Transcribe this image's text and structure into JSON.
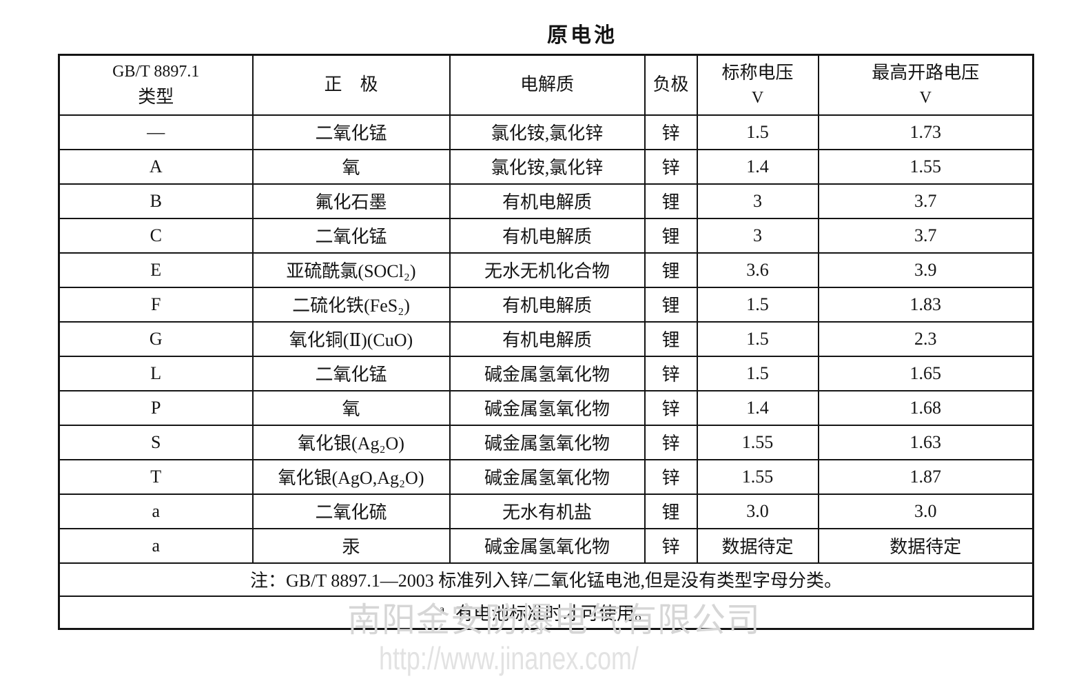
{
  "title": "原电池",
  "table": {
    "header": {
      "col1_line1": "GB/T 8897.1",
      "col1_line2": "类型",
      "col2": "正　极",
      "col3": "电解质",
      "col4": "负极",
      "col5_line1": "标称电压",
      "col5_line2": "V",
      "col6_line1": "最高开路电压",
      "col6_line2": "V"
    },
    "rows": [
      {
        "type": "—",
        "positive": "二氧化锰",
        "electrolyte": "氯化铵,氯化锌",
        "negative": "锌",
        "nominal": "1.5",
        "max": "1.73"
      },
      {
        "type": "A",
        "positive": "氧",
        "electrolyte": "氯化铵,氯化锌",
        "negative": "锌",
        "nominal": "1.4",
        "max": "1.55"
      },
      {
        "type": "B",
        "positive": "氟化石墨",
        "electrolyte": "有机电解质",
        "negative": "锂",
        "nominal": "3",
        "max": "3.7"
      },
      {
        "type": "C",
        "positive": "二氧化锰",
        "electrolyte": "有机电解质",
        "negative": "锂",
        "nominal": "3",
        "max": "3.7"
      },
      {
        "type": "E",
        "positive": "亚硫酰氯(SOCl₂)",
        "electrolyte": "无水无机化合物",
        "negative": "锂",
        "nominal": "3.6",
        "max": "3.9"
      },
      {
        "type": "F",
        "positive": "二硫化铁(FeS₂)",
        "electrolyte": "有机电解质",
        "negative": "锂",
        "nominal": "1.5",
        "max": "1.83"
      },
      {
        "type": "G",
        "positive": "氧化铜(Ⅱ)(CuO)",
        "electrolyte": "有机电解质",
        "negative": "锂",
        "nominal": "1.5",
        "max": "2.3"
      },
      {
        "type": "L",
        "positive": "二氧化锰",
        "electrolyte": "碱金属氢氧化物",
        "negative": "锌",
        "nominal": "1.5",
        "max": "1.65"
      },
      {
        "type": "P",
        "positive": "氧",
        "electrolyte": "碱金属氢氧化物",
        "negative": "锌",
        "nominal": "1.4",
        "max": "1.68"
      },
      {
        "type": "S",
        "positive": "氧化银(Ag₂O)",
        "electrolyte": "碱金属氢氧化物",
        "negative": "锌",
        "nominal": "1.55",
        "max": "1.63"
      },
      {
        "type": "T",
        "positive": "氧化银(AgO,Ag₂O)",
        "electrolyte": "碱金属氢氧化物",
        "negative": "锌",
        "nominal": "1.55",
        "max": "1.87"
      },
      {
        "type": "a",
        "type_superscript": true,
        "positive": "二氧化硫",
        "electrolyte": "无水有机盐",
        "negative": "锂",
        "nominal": "3.0",
        "max": "3.0"
      },
      {
        "type": "a",
        "type_superscript": true,
        "positive": "汞",
        "electrolyte": "碱金属氢氧化物",
        "negative": "锌",
        "nominal": "数据待定",
        "max": "数据待定"
      }
    ],
    "note1": "注：GB/T 8897.1—2003 标准列入锌/二氧化锰电池,但是没有类型字母分类。",
    "note2_marker": "a",
    "note2_text": "有电池标准时才可使用。"
  },
  "watermark": {
    "company": "南阳金安防爆电气有限公司",
    "url": "http://www.jinanex.com/"
  }
}
